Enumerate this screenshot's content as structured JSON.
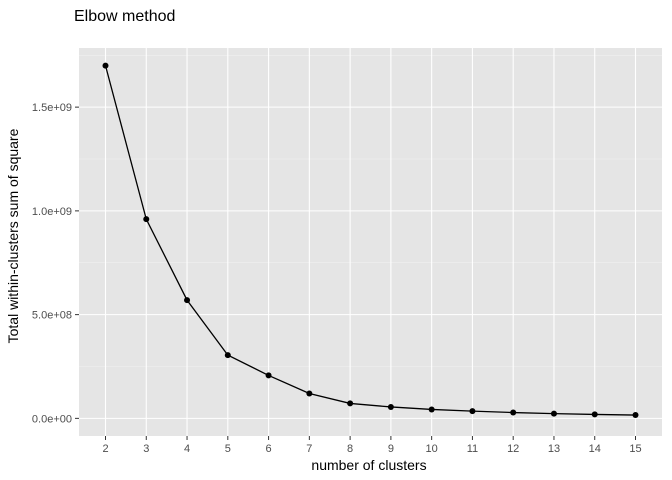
{
  "chart_data": {
    "type": "line",
    "title": "Elbow method",
    "xlabel": "number of clusters",
    "ylabel": "Total within-clusters sum of square",
    "x": [
      2,
      3,
      4,
      5,
      6,
      7,
      8,
      9,
      10,
      11,
      12,
      13,
      14,
      15
    ],
    "y": [
      1700000000,
      960000000,
      570000000,
      305000000,
      207000000,
      120000000,
      72000000,
      55000000,
      43000000,
      35000000,
      28000000,
      23000000,
      19000000,
      16000000
    ],
    "xlim": [
      1.35,
      15.65
    ],
    "ylim": [
      -85000000,
      1785000000
    ],
    "x_ticks": [
      2,
      3,
      4,
      5,
      6,
      7,
      8,
      9,
      10,
      11,
      12,
      13,
      14,
      15
    ],
    "x_tick_labels": [
      "2",
      "3",
      "4",
      "5",
      "6",
      "7",
      "8",
      "9",
      "10",
      "11",
      "12",
      "13",
      "14",
      "15"
    ],
    "y_ticks": [
      0,
      500000000,
      1000000000,
      1500000000
    ],
    "y_tick_labels": [
      "0.0e+00",
      "5.0e+08",
      "1.0e+09",
      "1.5e+09"
    ],
    "grid": true,
    "markers": true,
    "colors": {
      "panel_background": "#e5e5e5",
      "grid_major": "#ffffff",
      "grid_minor": "#f2f2f2",
      "line": "#000000",
      "points": "#000000",
      "tick_text": "#4d4d4d"
    }
  }
}
